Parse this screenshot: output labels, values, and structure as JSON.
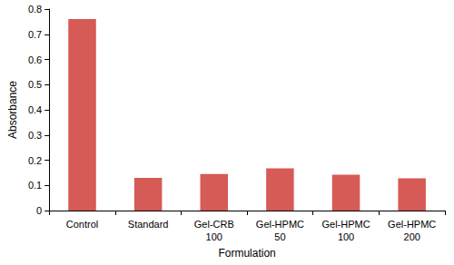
{
  "chart_data": {
    "type": "bar",
    "x_label": "Formulation",
    "y_label": "Absorbance",
    "categories": [
      "Control",
      "Standard",
      "Gel-CRB 100",
      "Gel-HPMC 50",
      "Gel-HPMC 100",
      "Gel-HPMC 200"
    ],
    "values": [
      0.76,
      0.13,
      0.145,
      0.168,
      0.142,
      0.128
    ],
    "color": "#d65a55",
    "ylim": [
      0,
      0.8
    ],
    "yticks": [
      0,
      0.1,
      0.2,
      0.3,
      0.4,
      0.5,
      0.6,
      0.7,
      0.8
    ],
    "grid": false
  }
}
